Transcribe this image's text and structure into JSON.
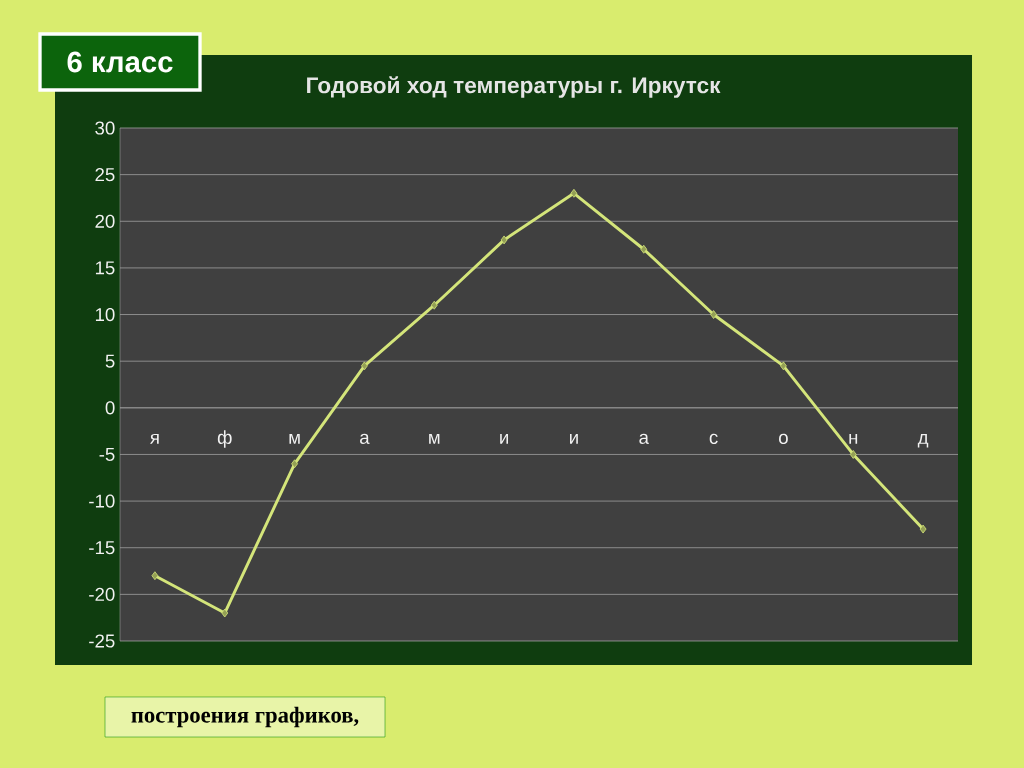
{
  "chart_data": {
    "type": "line",
    "title": "Годовой ход температуры г. Иркутск",
    "categories": [
      "я",
      "ф",
      "м",
      "а",
      "м",
      "и",
      "и",
      "а",
      "с",
      "о",
      "н",
      "д"
    ],
    "series": [
      {
        "color": "#d4e57a",
        "values": [
          -18,
          -22,
          -6,
          4.5,
          11,
          18,
          23,
          17,
          10,
          4.5,
          -5,
          -13
        ]
      }
    ],
    "ylim": [
      -25,
      30
    ],
    "yticks": [
      -25,
      -20,
      -15,
      -10,
      -5,
      0,
      5,
      10,
      15,
      20,
      25,
      30
    ],
    "grid": "y",
    "marker": "diamond",
    "annotations": [
      "6 класс",
      "построения графиков,"
    ]
  }
}
